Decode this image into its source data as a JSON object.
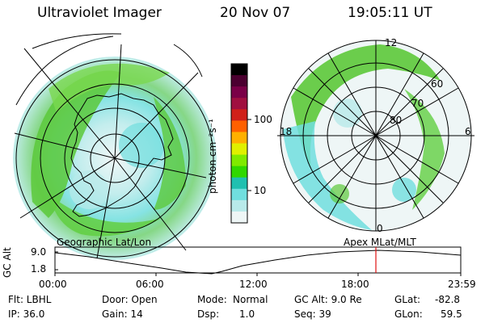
{
  "header": {
    "instrument": "Ultraviolet Imager",
    "date": "20 Nov 07",
    "time": "19:05:11 UT"
  },
  "colorbar": {
    "unit_label": "photon cm⁻²s⁻¹",
    "ticks": [
      "100",
      "10"
    ],
    "colors": [
      "#000000",
      "#4b0030",
      "#7a0047",
      "#a01040",
      "#d0201a",
      "#ff6000",
      "#ffb000",
      "#e0f000",
      "#80ea00",
      "#30d800",
      "#20c0b0",
      "#70dede",
      "#b8eaea",
      "#eef6f6"
    ]
  },
  "left_map": {
    "caption": "Geographic Lat/Lon"
  },
  "right_map": {
    "caption": "Apex  MLat/MLT",
    "mlt_labels": {
      "top": "12",
      "left": "18",
      "right": "6",
      "bottom": "0"
    },
    "mlat_labels": [
      "60",
      "70",
      "80"
    ]
  },
  "timeline": {
    "ylabel": "GC Alt",
    "yticks": [
      "9.0",
      "1.8"
    ],
    "xticks": [
      "00:00",
      "06:00",
      "12:00",
      "18:00",
      "23:59"
    ],
    "marker_color": "#e01010"
  },
  "info": {
    "row1": {
      "filter": "Flt: LBHL",
      "door": "Door: Open",
      "mode_label": "Mode:",
      "mode_value": "Normal",
      "gc_alt": "GC Alt: 9.0 Re",
      "glat_label": "GLat:",
      "glat_value": "-82.8"
    },
    "row2": {
      "ip": "IP: 36.0",
      "gain": "Gain: 14",
      "dsp_label": "Dsp:",
      "dsp_value": "1.0",
      "seq": "Seq: 39",
      "glon_label": "GLon:",
      "glon_value": "59.5"
    }
  }
}
